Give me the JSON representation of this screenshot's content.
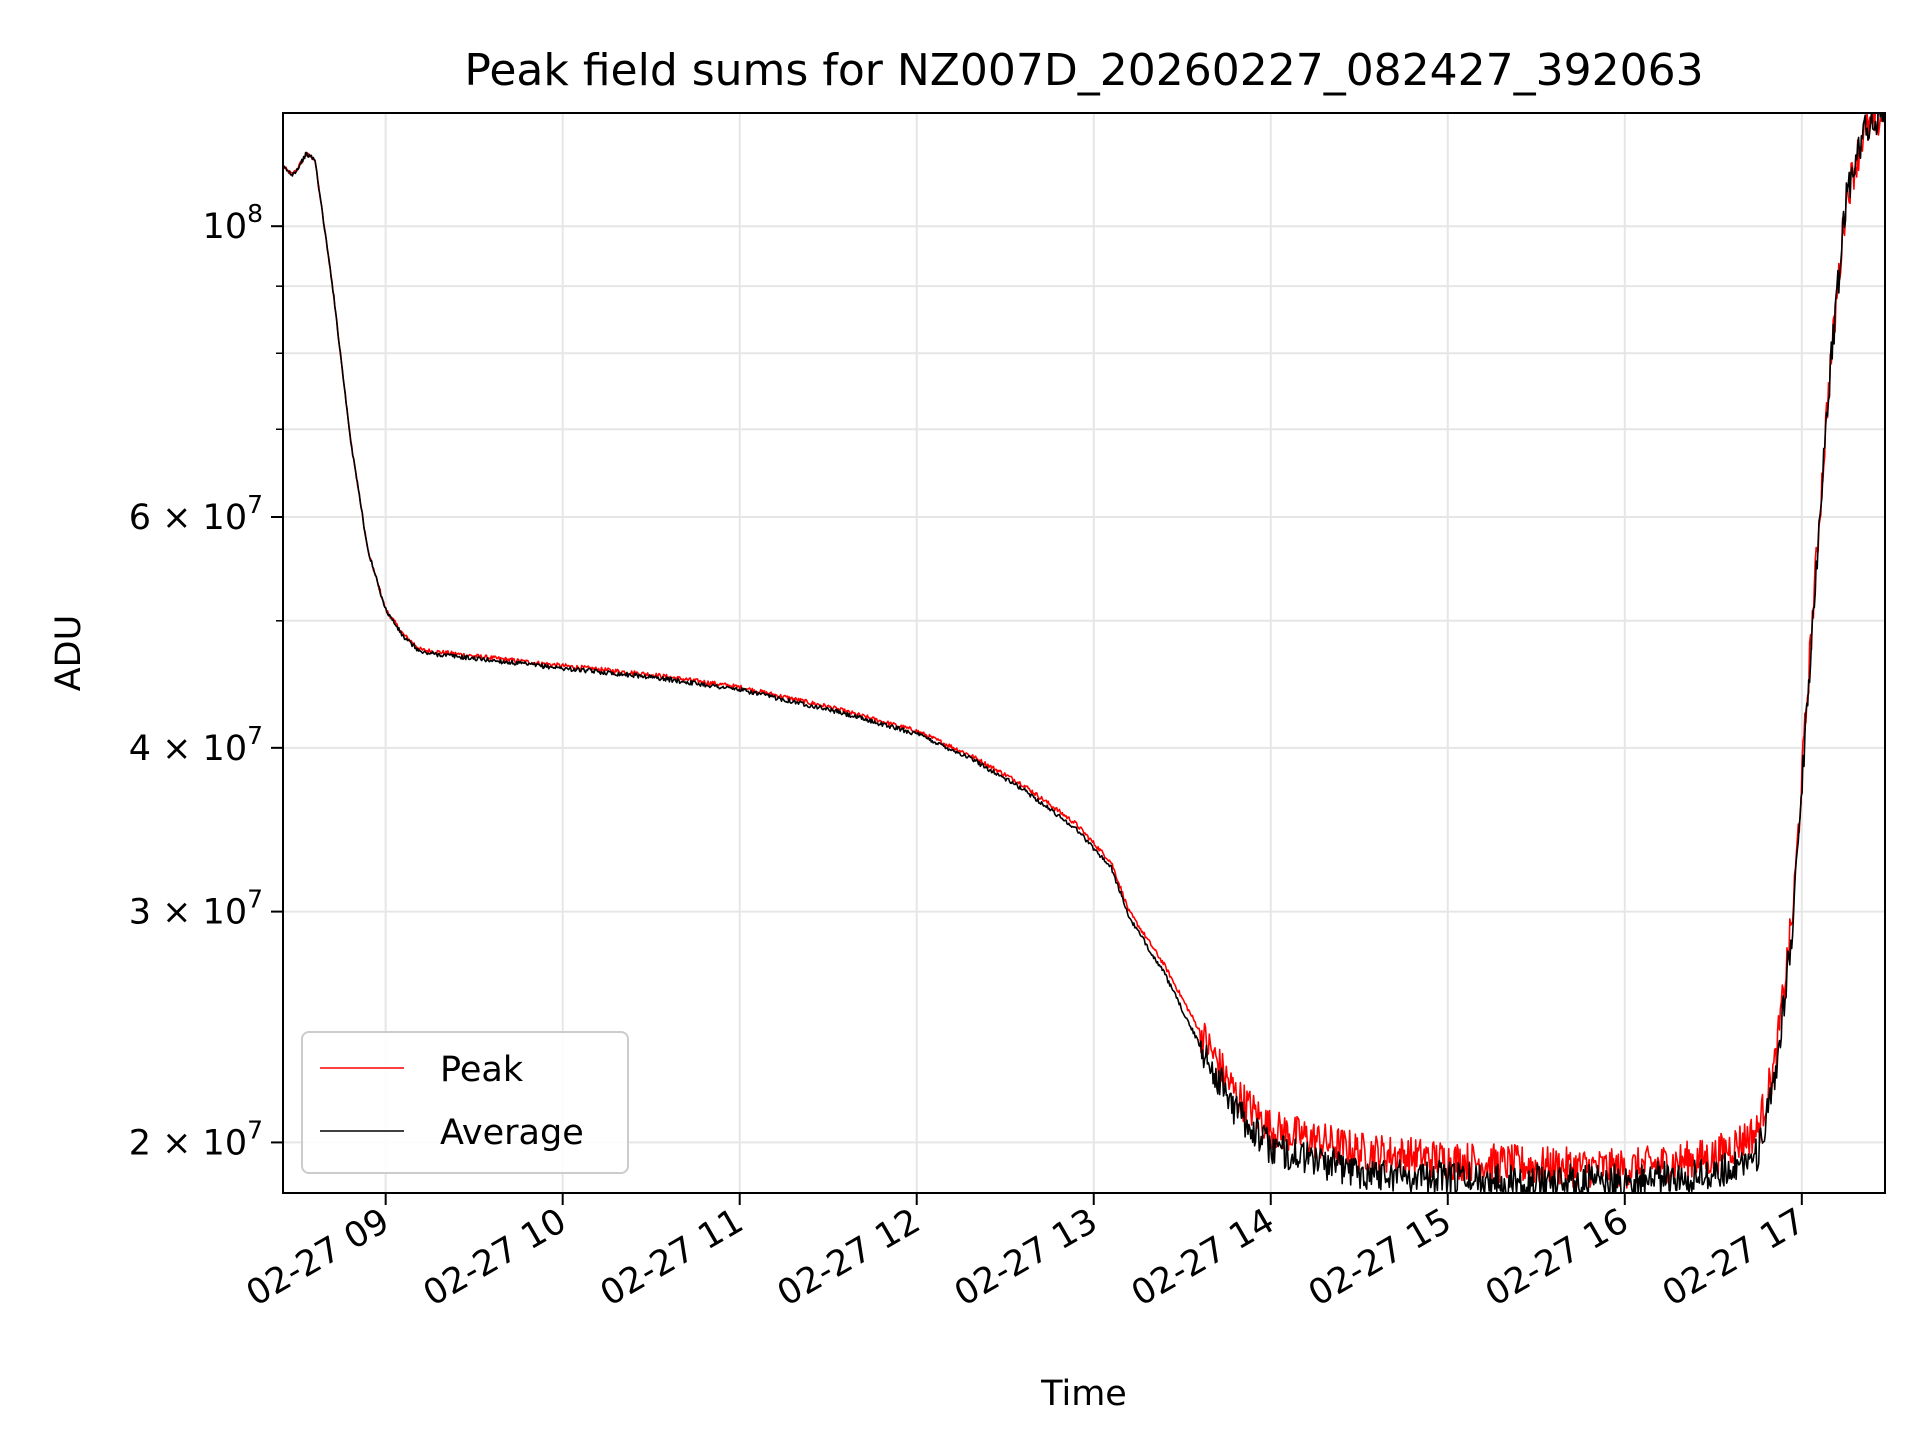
{
  "chart_data": {
    "type": "line",
    "title": "Peak field sums for NZ007D_20260227_082427_392063",
    "xlabel": "Time",
    "ylabel": "ADU",
    "yscale": "log",
    "xlim": [
      8.42,
      17.47
    ],
    "ylim": [
      18300000,
      122000000
    ],
    "grid": true,
    "legend_position": "lower-left",
    "x_ticks": [
      {
        "value": 9,
        "label": "02-27 09"
      },
      {
        "value": 10,
        "label": "02-27 10"
      },
      {
        "value": 11,
        "label": "02-27 11"
      },
      {
        "value": 12,
        "label": "02-27 12"
      },
      {
        "value": 13,
        "label": "02-27 13"
      },
      {
        "value": 14,
        "label": "02-27 14"
      },
      {
        "value": 15,
        "label": "02-27 15"
      },
      {
        "value": 16,
        "label": "02-27 16"
      },
      {
        "value": 17,
        "label": "02-27 17"
      }
    ],
    "y_major_ticks": [
      {
        "value": 20000000,
        "mant": "2",
        "exp": "7"
      },
      {
        "value": 30000000,
        "mant": "3",
        "exp": "7"
      },
      {
        "value": 40000000,
        "mant": "4",
        "exp": "7"
      },
      {
        "value": 60000000,
        "mant": "6",
        "exp": "7"
      },
      {
        "value": 100000000,
        "mant": "",
        "exp": "8"
      }
    ],
    "y_minor_grid": [
      50000000,
      70000000,
      80000000,
      90000000
    ],
    "series": [
      {
        "name": "Peak",
        "color": "#ff0000",
        "noise_from": 13.6,
        "noise_amplitude": 0.035,
        "x": [
          8.42,
          8.47,
          8.5,
          8.55,
          8.6,
          8.7,
          8.8,
          8.9,
          9.0,
          9.1,
          9.2,
          9.5,
          10.0,
          10.5,
          11.0,
          11.5,
          12.0,
          12.3,
          12.6,
          12.9,
          13.1,
          13.2,
          13.4,
          13.6,
          13.8,
          14.0,
          14.5,
          15.0,
          15.5,
          16.0,
          16.5,
          16.75,
          16.85,
          16.95,
          17.05,
          17.15,
          17.25,
          17.35,
          17.47
        ],
        "y": [
          111000000,
          109500000,
          110500000,
          113500000,
          112500000,
          90000000,
          69000000,
          56500000,
          51000000,
          48800000,
          47500000,
          47000000,
          46200000,
          45500000,
          44500000,
          43000000,
          41200000,
          39500000,
          37500000,
          35000000,
          32700000,
          30000000,
          27300000,
          24300000,
          21800000,
          20500000,
          19700000,
          19400000,
          19200000,
          19100000,
          19500000,
          20400000,
          23000000,
          30000000,
          48000000,
          75000000,
          105000000,
          118000000,
          122000000
        ]
      },
      {
        "name": "Average",
        "color": "#000000",
        "noise_from": 13.6,
        "noise_amplitude": 0.03,
        "x": [
          8.42,
          8.47,
          8.5,
          8.55,
          8.6,
          8.7,
          8.8,
          8.9,
          9.0,
          9.1,
          9.2,
          9.5,
          10.0,
          10.5,
          11.0,
          11.5,
          12.0,
          12.3,
          12.6,
          12.9,
          13.1,
          13.2,
          13.4,
          13.6,
          13.8,
          14.0,
          14.5,
          15.0,
          15.5,
          16.0,
          16.5,
          16.75,
          16.85,
          16.95,
          17.05,
          17.15,
          17.25,
          17.35,
          17.47
        ],
        "y": [
          111000000,
          109500000,
          110500000,
          113500000,
          112500000,
          90000000,
          69000000,
          56500000,
          51000000,
          48600000,
          47300000,
          46800000,
          46000000,
          45300000,
          44300000,
          42800000,
          41000000,
          39300000,
          37200000,
          34700000,
          32400000,
          29700000,
          26900000,
          23700000,
          21200000,
          19800000,
          19000000,
          18800000,
          18700000,
          18700000,
          18900000,
          19600000,
          22200000,
          29500000,
          47500000,
          75000000,
          105000000,
          118000000,
          122000000
        ]
      }
    ]
  }
}
